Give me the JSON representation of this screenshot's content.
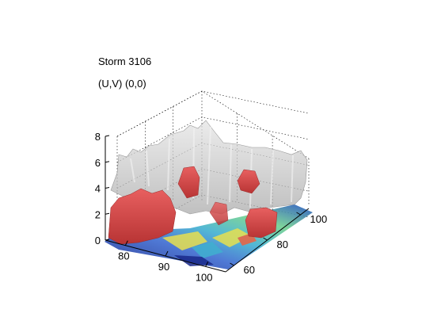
{
  "chart_data": {
    "type": "surface3d",
    "title": "Storm 3106",
    "subtitle": "(U,V) (0,0)",
    "xlabel": "",
    "ylabel": "",
    "zlabel": "",
    "x_ticks": [
      "80",
      "90",
      "100"
    ],
    "y_ticks": [
      "60",
      "80",
      "100"
    ],
    "z_ticks": [
      "0",
      "2",
      "4",
      "6",
      "8"
    ],
    "xlim": [
      75,
      105
    ],
    "ylim": [
      55,
      105
    ],
    "zlim": [
      0,
      8
    ],
    "grid": true,
    "colors": {
      "upper_isosurface": "#bdbdbd",
      "lower_isosurface": "#d84848",
      "floor_low": "#1a2a8c",
      "floor_mid": "#40b0d0",
      "floor_high": "#e8e050",
      "floor_peak": "#f06040"
    },
    "series": [
      {
        "level": "high",
        "color": "#bdbdbd"
      },
      {
        "level": "low",
        "color": "#d84848"
      }
    ]
  }
}
